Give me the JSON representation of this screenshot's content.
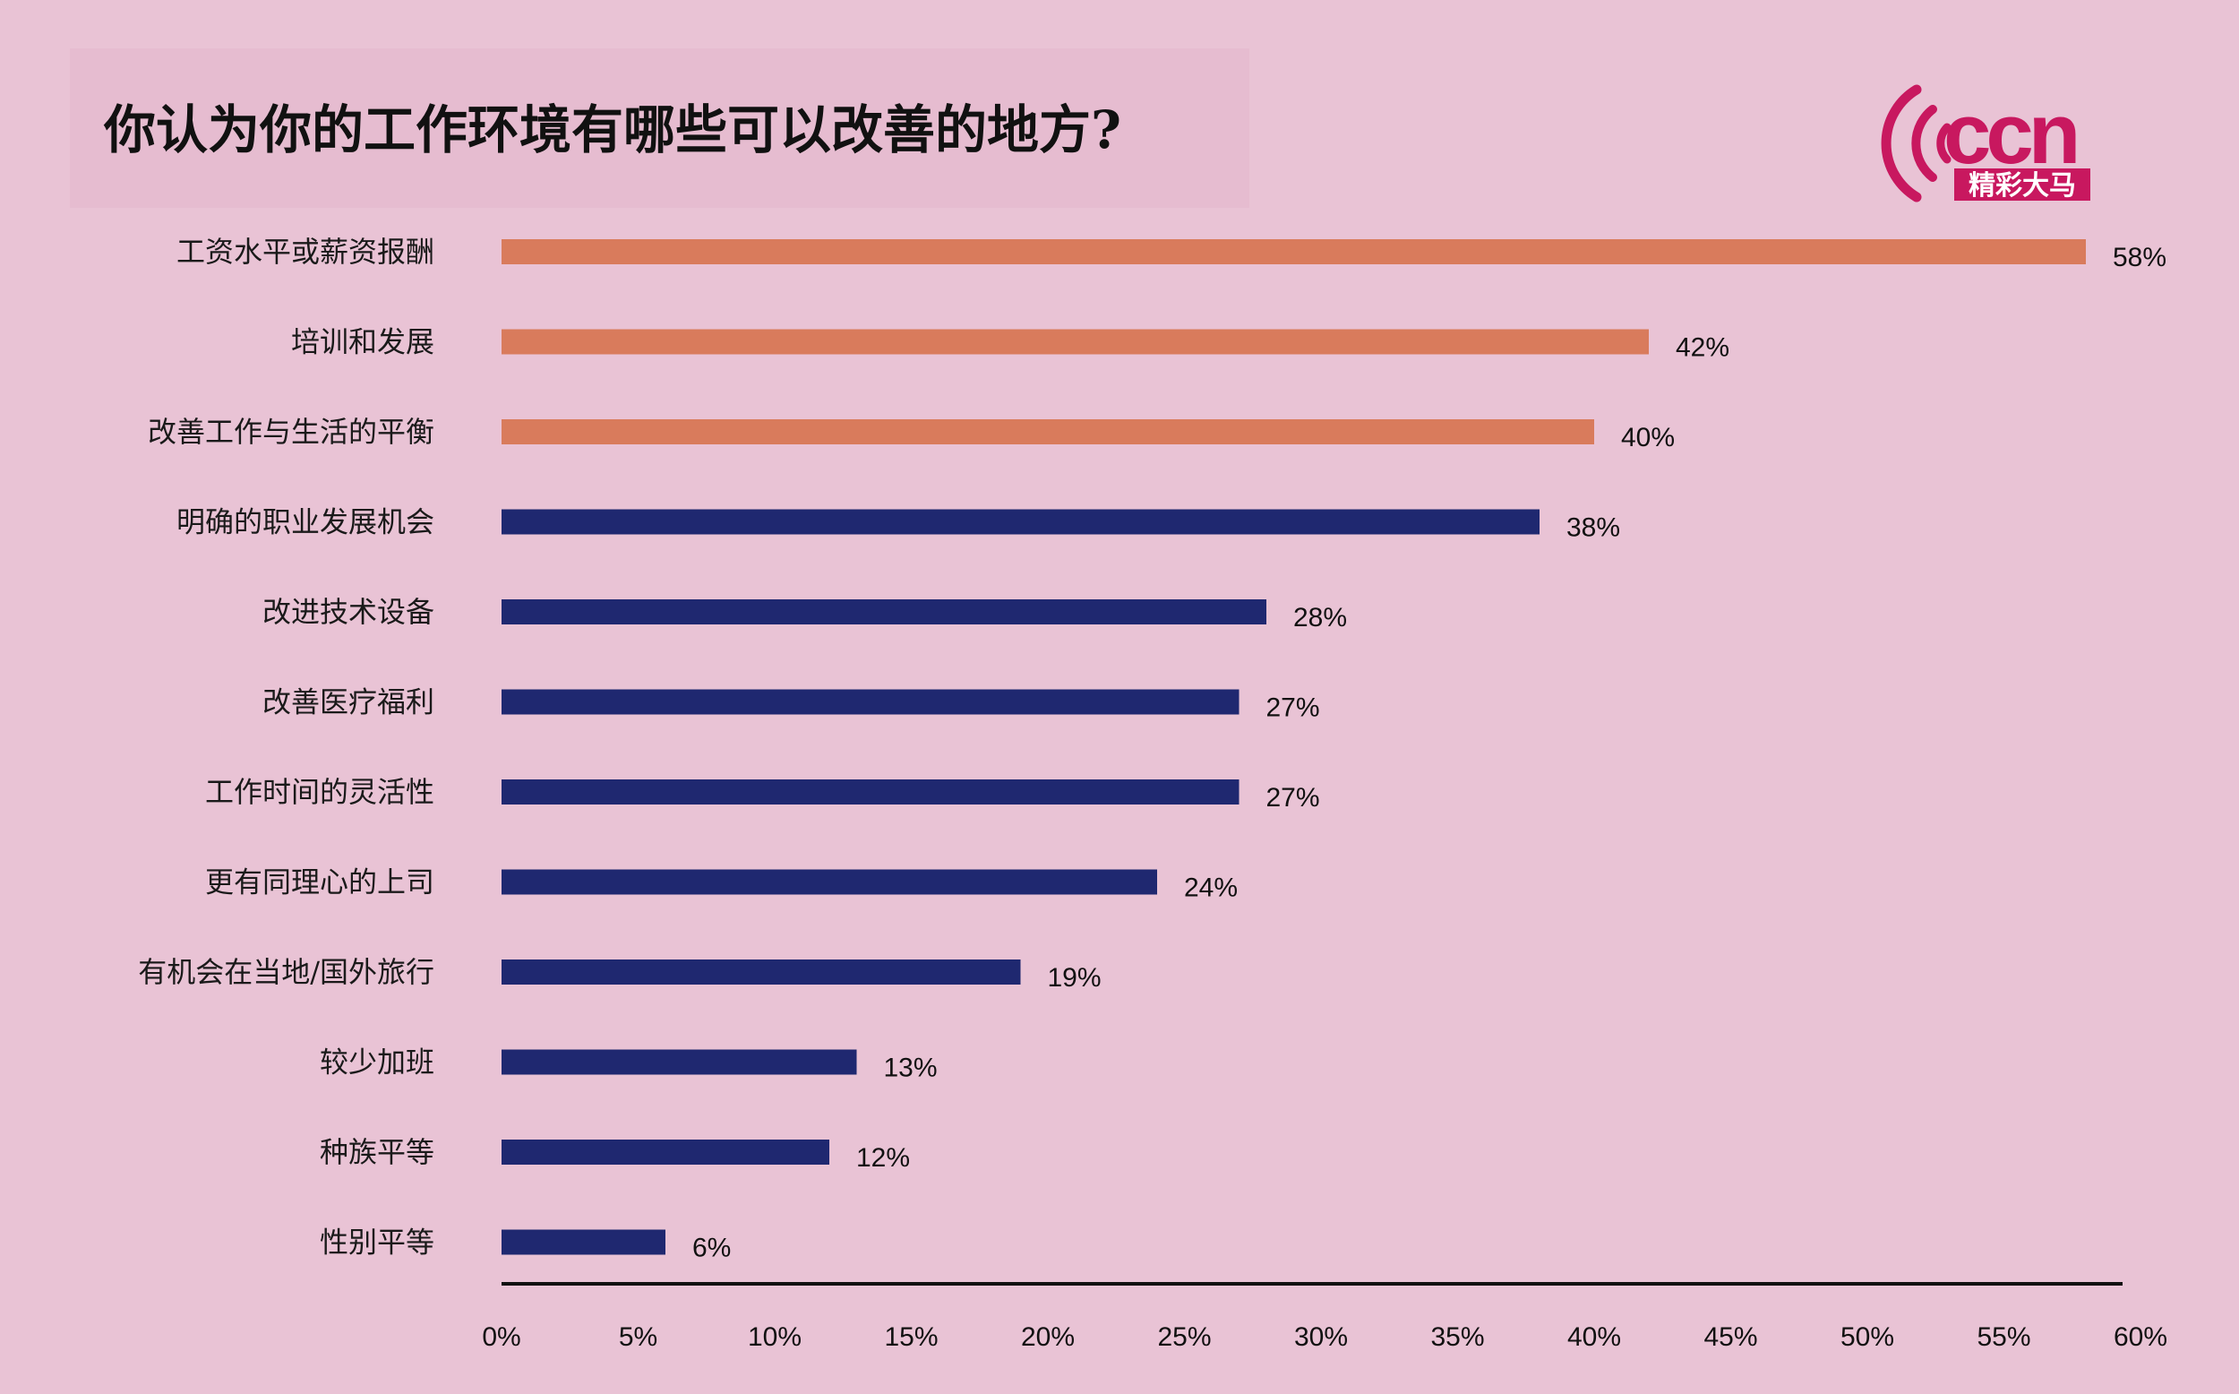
{
  "header": {
    "title": "你认为你的工作环境有哪些可以改善的地方?",
    "logo_text": "ccn",
    "logo_sub": "精彩大马"
  },
  "colors": {
    "background": "#e9c3d5",
    "highlight_bar": "#d97b5c",
    "bar": "#1f2870",
    "logo": "#c8185f"
  },
  "chart_data": {
    "type": "bar",
    "orientation": "horizontal",
    "title": "你认为你的工作环境有哪些可以改善的地方?",
    "categories": [
      "工资水平或薪资报酬",
      "培训和发展",
      "改善工作与生活的平衡",
      "明确的职业发展机会",
      "改进技术设备",
      "改善医疗福利",
      "工作时间的灵活性",
      "更有同理心的上司",
      "有机会在当地/国外旅行",
      "较少加班",
      "种族平等",
      "性别平等"
    ],
    "values": [
      58,
      42,
      40,
      38,
      28,
      27,
      27,
      24,
      19,
      13,
      12,
      6
    ],
    "value_labels": [
      "58%",
      "42%",
      "40%",
      "38%",
      "28%",
      "27%",
      "27%",
      "24%",
      "19%",
      "13%",
      "12%",
      "6%"
    ],
    "highlighted_top": 3,
    "xlim": [
      0,
      60
    ],
    "xticks": [
      "0%",
      "5%",
      "10%",
      "15%",
      "20%",
      "25%",
      "30%",
      "35%",
      "40%",
      "45%",
      "50%",
      "55%",
      "60%"
    ],
    "grid": false,
    "legend": "none"
  }
}
